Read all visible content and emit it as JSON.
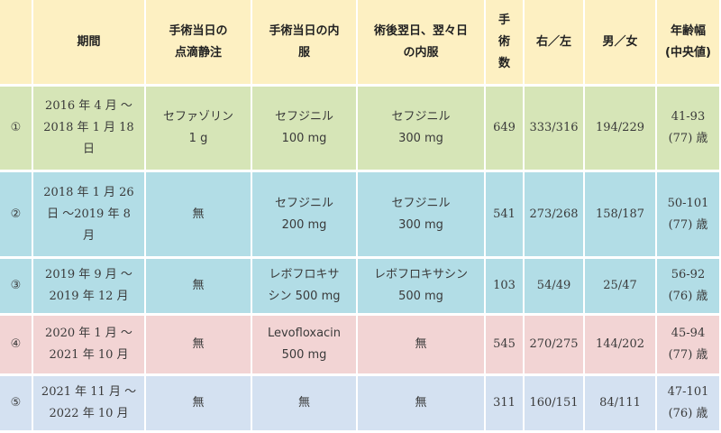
{
  "colors": {
    "header": "#fdf0c2",
    "row_green": "#d6e5b7",
    "row_blue": "#b2dde6",
    "row_pink": "#f2d4d4",
    "row_lightblue": "#d4e1f1"
  },
  "header": {
    "index": "",
    "period": "期間",
    "day_of_surgery_drip": "手術当日の\n点滴静注",
    "day_of_surgery_oral": "手術当日の内\n服",
    "postop_oral": "術後翌日、翌々日\nの内服",
    "surgery_count": "手\n術\n数",
    "right_left": "右／左",
    "male_female": "男／女",
    "age_range": "年齢幅\n(中央値)"
  },
  "rows": [
    {
      "index": "①",
      "period": "2016 年 4 月 〜\n2018 年 1 月 18\n日",
      "drip": "セファゾリン\n1 g",
      "day_oral": "セフジニル\n100 mg",
      "postop_oral": "セフジニル\n300 mg",
      "count": "649",
      "right_left": "333/316",
      "male_female": "194/229",
      "age": "41-93\n(77) 歳",
      "color": "#d6e5b7"
    },
    {
      "index": "②",
      "period": "2018 年 1 月 26\n日 〜2019 年 8\n月",
      "drip": "無",
      "day_oral": "セフジニル\n200 mg",
      "postop_oral": "セフジニル\n300 mg",
      "count": "541",
      "right_left": "273/268",
      "male_female": "158/187",
      "age": "50-101\n(77) 歳",
      "color": "#b2dde6"
    },
    {
      "index": "③",
      "period": "2019 年 9 月 〜\n2019 年 12 月",
      "drip": "無",
      "day_oral": "レボフロキサ\nシン 500 mg",
      "postop_oral": "レボフロキサシン\n500 mg",
      "count": "103",
      "right_left": "54/49",
      "male_female": "25/47",
      "age": "56-92\n(76) 歳",
      "color": "#b2dde6"
    },
    {
      "index": "④",
      "period": "2020 年 1 月 〜\n2021 年 10 月",
      "drip": "無",
      "day_oral": "Levofloxacin\n500 mg",
      "postop_oral": "無",
      "count": "545",
      "right_left": "270/275",
      "male_female": "144/202",
      "age": "45-94\n(77) 歳",
      "color": "#f2d4d4"
    },
    {
      "index": "⑤",
      "period": "2021 年 11 月 〜\n2022 年 10 月",
      "drip": "無",
      "day_oral": "無",
      "postop_oral": "無",
      "count": "311",
      "right_left": "160/151",
      "male_female": "84/111",
      "age": "47-101\n(76) 歳",
      "color": "#d4e1f1"
    }
  ]
}
